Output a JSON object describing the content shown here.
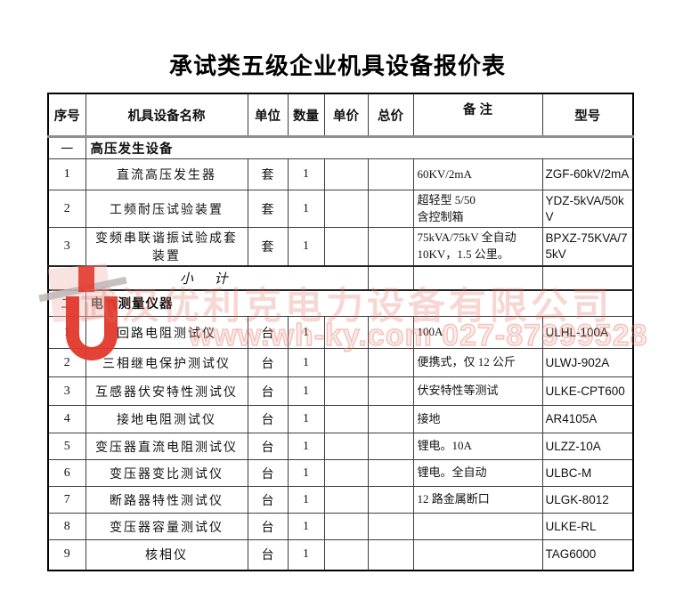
{
  "page": {
    "title": "承试类五级企业机具设备报价表"
  },
  "table": {
    "headers": {
      "no": "序号",
      "name": "机具设备名称",
      "unit": "单位",
      "qty": "数量",
      "unit_price": "单价",
      "total_price": "总价",
      "remark": "备 注",
      "model": "型号"
    },
    "sections": [
      {
        "index_label": "一",
        "title": "高压发生设备",
        "subtotal_label": "小 计",
        "rows": [
          {
            "no": "1",
            "name": "直流高压发生器",
            "unit": "套",
            "qty": "1",
            "unit_price": "",
            "total_price": "",
            "remark": "60KV/2mA",
            "model": "ZGF-60kV/2mA"
          },
          {
            "no": "2",
            "name": "工频耐压试验装置",
            "unit": "套",
            "qty": "1",
            "unit_price": "",
            "total_price": "",
            "remark": "超轻型 5/50\n含控制箱",
            "model": "YDZ-5kVA/50kV"
          },
          {
            "no": "3",
            "name": "变频串联谐振试验成套装置",
            "unit": "套",
            "qty": "1",
            "unit_price": "",
            "total_price": "",
            "remark": "75kVA/75kV 全自动\n10KV，1.5 公里。",
            "model": "BPXZ-75KVA/75kV"
          }
        ]
      },
      {
        "index_label": "二",
        "title": "电气测量仪器",
        "rows": [
          {
            "no": "1",
            "name": "回路电阻测试仪",
            "unit": "台",
            "qty": "1",
            "unit_price": "",
            "total_price": "",
            "remark": "100A",
            "model": "ULHL-100A"
          },
          {
            "no": "2",
            "name": "三相继电保护测试仪",
            "unit": "台",
            "qty": "1",
            "unit_price": "",
            "total_price": "",
            "remark": "便携式，仅 12 公斤",
            "model": "ULWJ-902A"
          },
          {
            "no": "3",
            "name": "互感器伏安特性测试仪",
            "unit": "台",
            "qty": "1",
            "unit_price": "",
            "total_price": "",
            "remark": "伏安特性等测试",
            "model": "ULKE-CPT600"
          },
          {
            "no": "4",
            "name": "接地电阻测试仪",
            "unit": "台",
            "qty": "1",
            "unit_price": "",
            "total_price": "",
            "remark": "接地",
            "model": "AR4105A"
          },
          {
            "no": "5",
            "name": "变压器直流电阻测试仪",
            "unit": "台",
            "qty": "1",
            "unit_price": "",
            "total_price": "",
            "remark": "锂电。10A",
            "model": "ULZZ-10A"
          },
          {
            "no": "6",
            "name": "变压器变比测试仪",
            "unit": "台",
            "qty": "1",
            "unit_price": "",
            "total_price": "",
            "remark": "锂电。全自动",
            "model": "ULBC-M"
          },
          {
            "no": "7",
            "name": "断路器特性测试仪",
            "unit": "台",
            "qty": "1",
            "unit_price": "",
            "total_price": "",
            "remark": "12 路金属断口",
            "model": "ULGK-8012"
          },
          {
            "no": "8",
            "name": "变压器容量测试仪",
            "unit": "台",
            "qty": "1",
            "unit_price": "",
            "total_price": "",
            "remark": "",
            "model": "ULKE-RL"
          },
          {
            "no": "9",
            "name": "核相仪",
            "unit": "台",
            "qty": "1",
            "unit_price": "",
            "total_price": "",
            "remark": "",
            "model": "TAG6000"
          }
        ]
      }
    ]
  },
  "watermark": {
    "company": "武汉优利克电力设备有限公司",
    "contact": "www.wh-ky.com  027-87999528",
    "accent_color": "#e2392c",
    "light_color": "#f2c0bb"
  }
}
